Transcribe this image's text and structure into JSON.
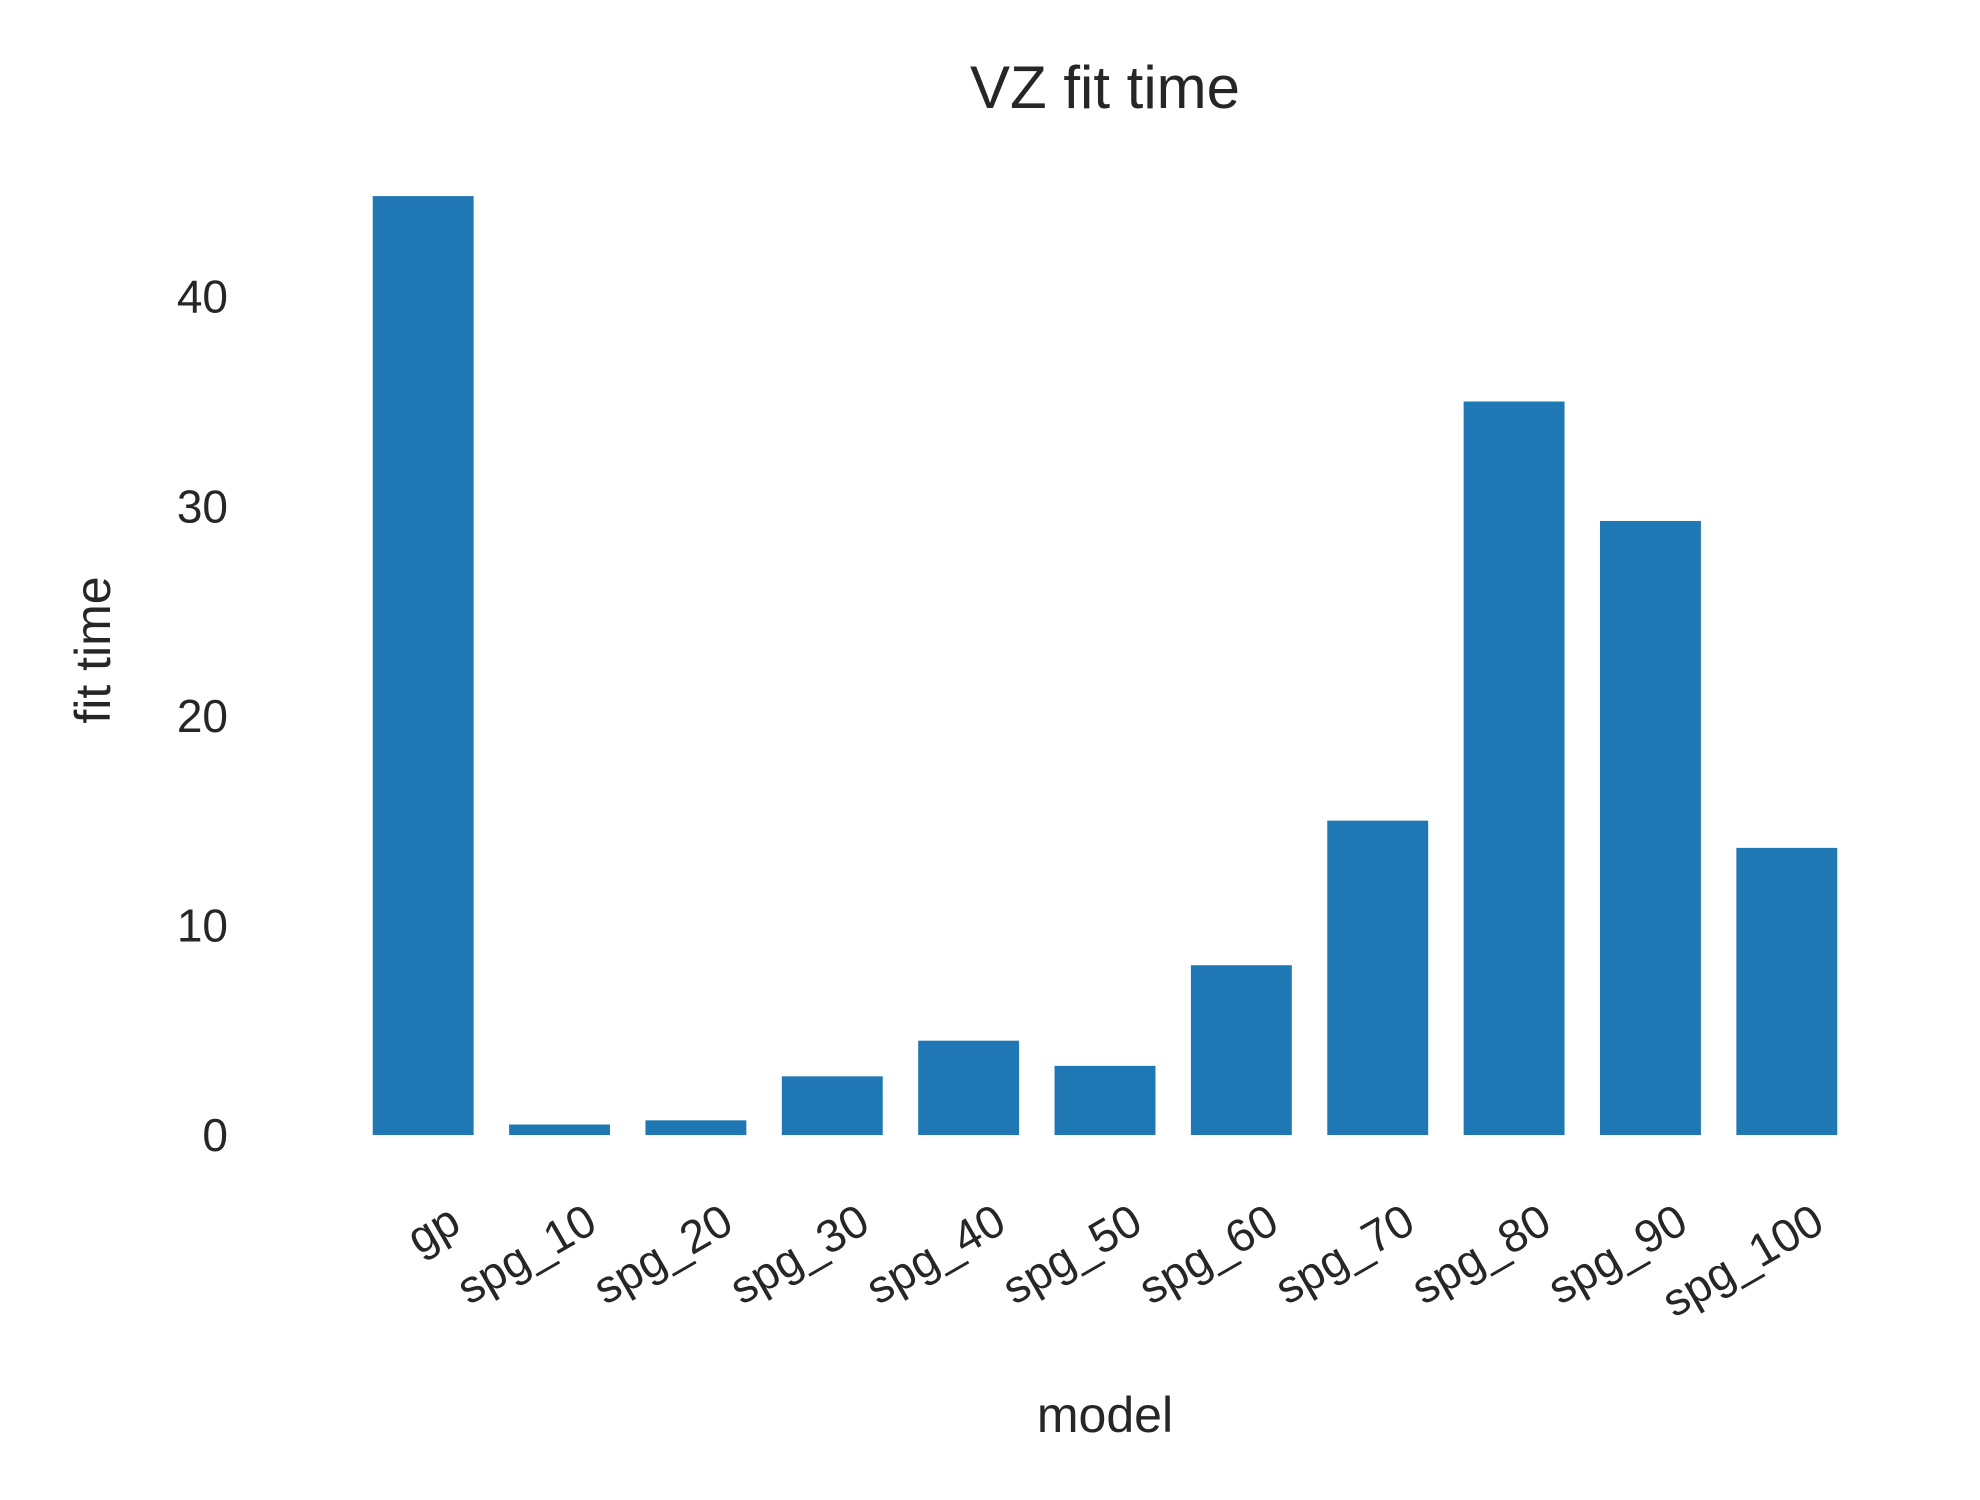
{
  "chart_data": {
    "type": "bar",
    "title": "VZ fit time",
    "xlabel": "model",
    "ylabel": "fit time",
    "categories": [
      "gp",
      "spg_10",
      "spg_20",
      "spg_30",
      "spg_40",
      "spg_50",
      "spg_60",
      "spg_70",
      "spg_80",
      "spg_90",
      "spg_100"
    ],
    "values": [
      44.8,
      0.5,
      0.7,
      2.8,
      4.5,
      3.3,
      8.1,
      15.0,
      35.0,
      29.3,
      13.7
    ],
    "ylim": [
      0,
      47
    ],
    "yticks": [
      0,
      10,
      20,
      30,
      40
    ],
    "bar_color": "#1f77b4",
    "grid": false,
    "legend": "none"
  }
}
